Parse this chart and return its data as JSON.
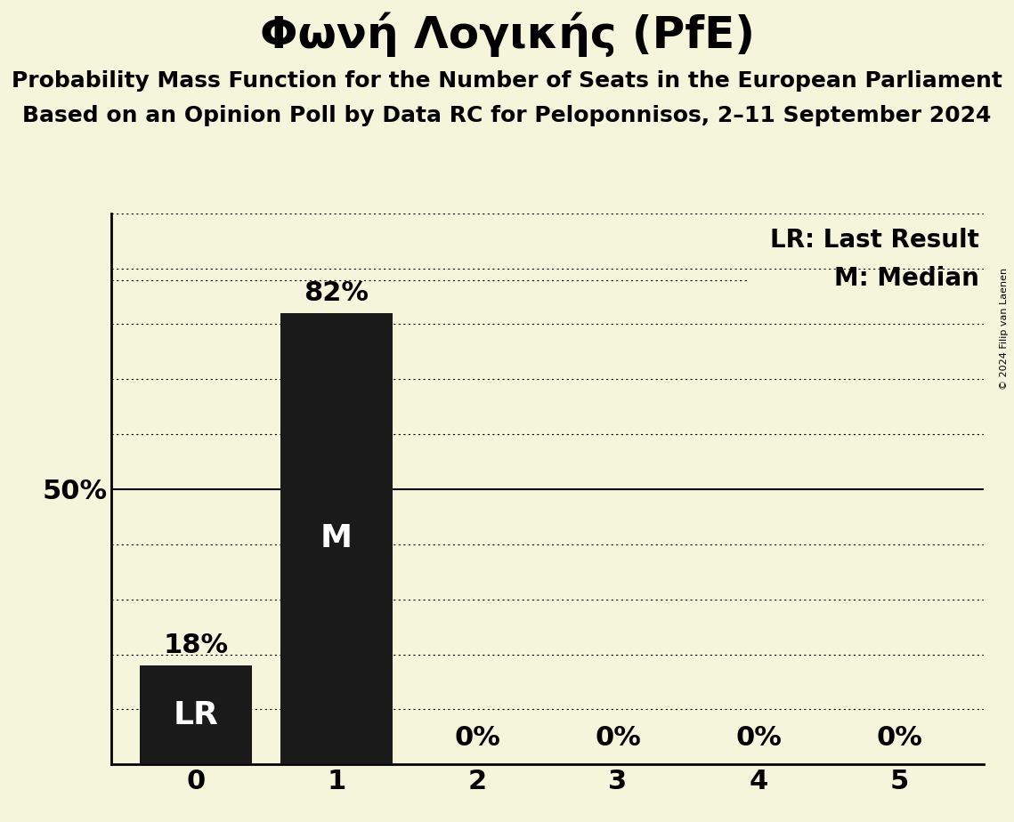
{
  "title": "Φωνή Λογικής (PfE)",
  "subtitle1": "Probability Mass Function for the Number of Seats in the European Parliament",
  "subtitle2": "Based on an Opinion Poll by Data RC for Peloponnisos, 2–11 September 2024",
  "copyright": "© 2024 Filip van Laenen",
  "categories": [
    0,
    1,
    2,
    3,
    4,
    5
  ],
  "values": [
    0.18,
    0.82,
    0.0,
    0.0,
    0.0,
    0.0
  ],
  "bar_color": "#1a1a1a",
  "background_color": "#f5f5dc",
  "bar_labels": [
    "18%",
    "82%",
    "0%",
    "0%",
    "0%",
    "0%"
  ],
  "last_result_seat": 0,
  "median_seat": 1,
  "lr_label": "LR",
  "median_label": "M",
  "legend_lr": "LR: Last Result",
  "legend_m": "M: Median",
  "ylim": [
    0,
    1.0
  ],
  "yticks": [
    0.1,
    0.2,
    0.3,
    0.4,
    0.5,
    0.6,
    0.7,
    0.8,
    0.9,
    1.0
  ],
  "ylabel_50": "50%",
  "title_fontsize": 36,
  "subtitle_fontsize": 18,
  "bar_label_fontsize": 22,
  "inside_label_fontsize": 26,
  "legend_fontsize": 20,
  "tick_fontsize": 22
}
